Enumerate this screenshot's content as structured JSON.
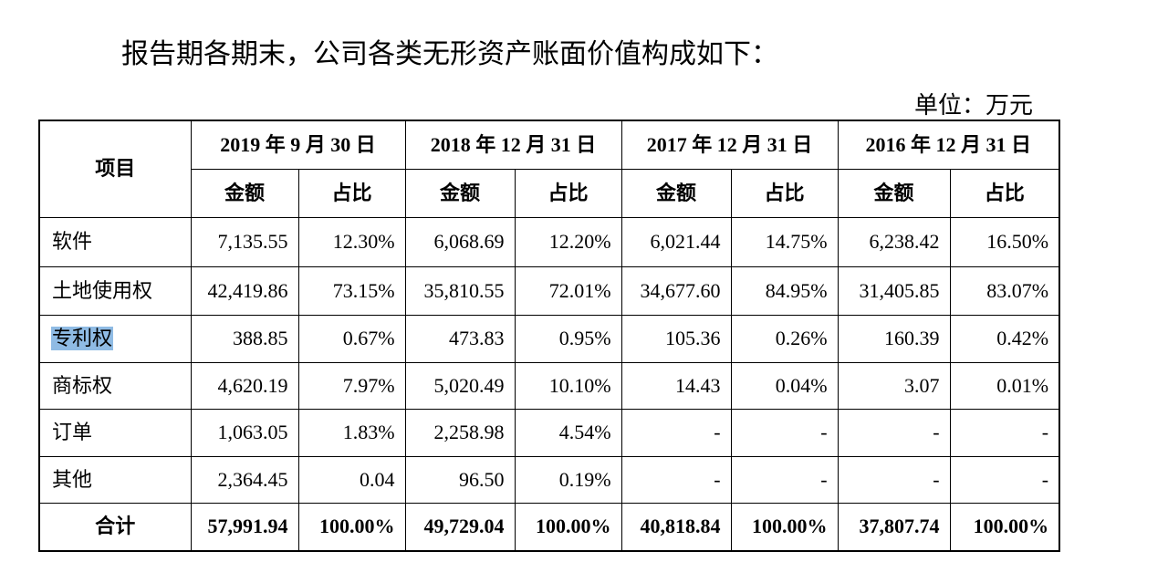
{
  "intro_text": "报告期各期末，公司各类无形资产账面价值构成如下：",
  "unit_label": "单位：万元",
  "colors": {
    "selection": "#8fbbe4"
  },
  "table": {
    "item_header": "项目",
    "periods": [
      {
        "label": "2019 年 9 月 30 日",
        "amount_header": "金额",
        "ratio_header": "占比"
      },
      {
        "label": "2018 年 12 月 31 日",
        "amount_header": "金额",
        "ratio_header": "占比"
      },
      {
        "label": "2017 年 12 月 31 日",
        "amount_header": "金额",
        "ratio_header": "占比"
      },
      {
        "label": "2016 年 12 月 31 日",
        "amount_header": "金额",
        "ratio_header": "占比"
      }
    ],
    "rows": [
      {
        "item": "软件",
        "cells": [
          "7,135.55",
          "12.30%",
          "6,068.69",
          "12.20%",
          "6,021.44",
          "14.75%",
          "6,238.42",
          "16.50%"
        ]
      },
      {
        "item": "土地使用权",
        "cells": [
          "42,419.86",
          "73.15%",
          "35,810.55",
          "72.01%",
          "34,677.60",
          "84.95%",
          "31,405.85",
          "83.07%"
        ]
      },
      {
        "item": "专利权",
        "selected": true,
        "cells": [
          "388.85",
          "0.67%",
          "473.83",
          "0.95%",
          "105.36",
          "0.26%",
          "160.39",
          "0.42%"
        ]
      },
      {
        "item": "商标权",
        "cells": [
          "4,620.19",
          "7.97%",
          "5,020.49",
          "10.10%",
          "14.43",
          "0.04%",
          "3.07",
          "0.01%"
        ]
      },
      {
        "item": "订单",
        "cells": [
          "1,063.05",
          "1.83%",
          "2,258.98",
          "4.54%",
          "-",
          "-",
          "-",
          "-"
        ]
      },
      {
        "item": "其他",
        "cells": [
          "2,364.45",
          "0.04",
          "96.50",
          "0.19%",
          "-",
          "-",
          "-",
          "-"
        ]
      }
    ],
    "total": {
      "item": "合计",
      "cells": [
        "57,991.94",
        "100.00%",
        "49,729.04",
        "100.00%",
        "40,818.84",
        "100.00%",
        "37,807.74",
        "100.00%"
      ]
    }
  }
}
